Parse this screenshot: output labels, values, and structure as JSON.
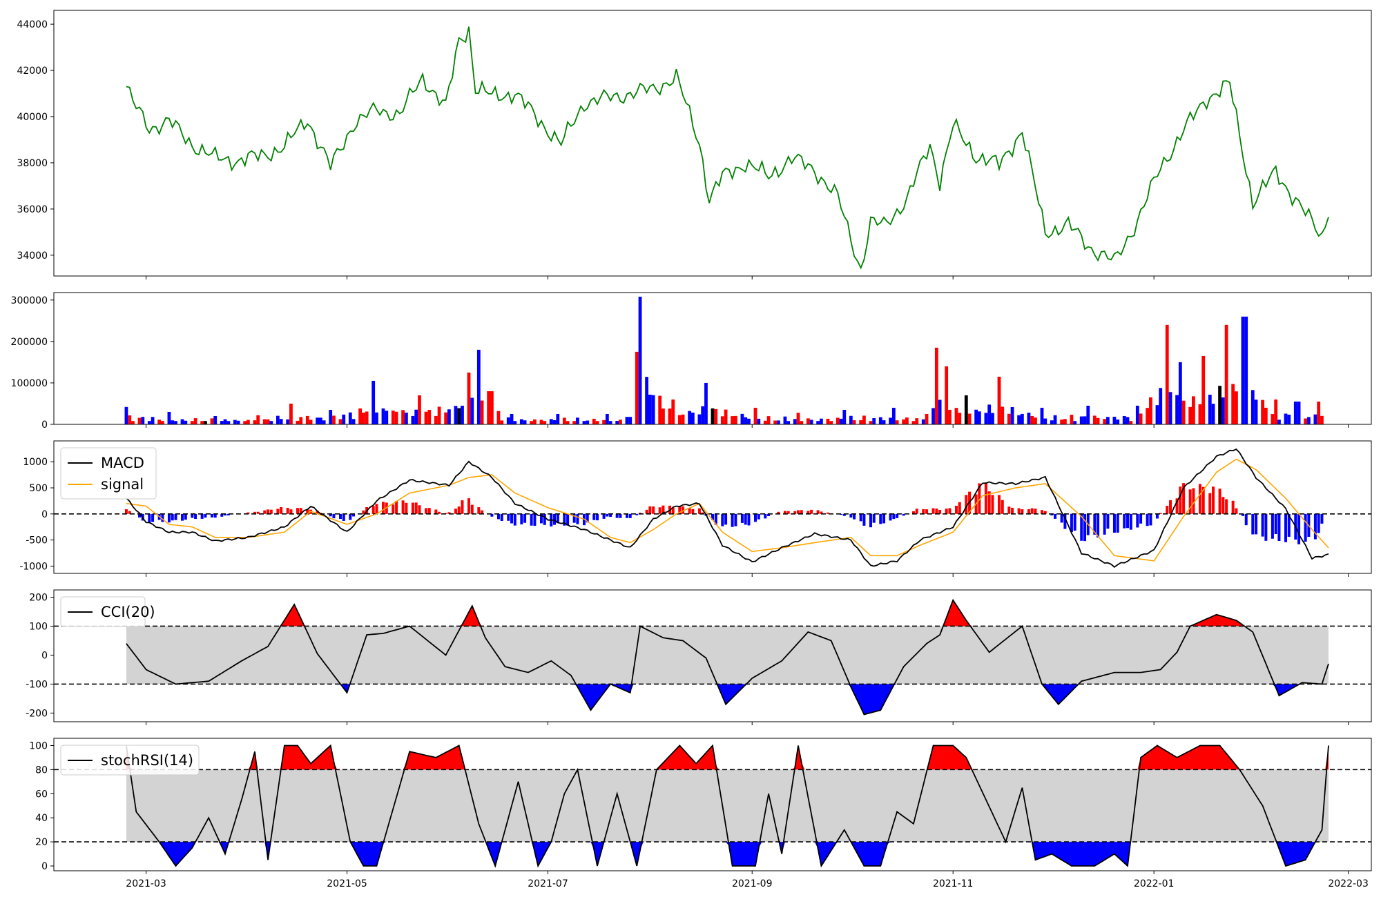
{
  "colors": {
    "price": "#008000",
    "up": "#ff0000",
    "down": "#0000ff",
    "flat": "#000000",
    "macd": "#000000",
    "signal": "#ffa500",
    "band": "#d3d3d3",
    "overbought": "#ff0000",
    "oversold": "#0000ff"
  },
  "x_axis": {
    "type": "date",
    "range": [
      "2021-02-01",
      "2022-03-08"
    ],
    "ticks": [
      "2021-03",
      "2021-05",
      "2021-07",
      "2021-09",
      "2021-11",
      "2022-01",
      "2022-03"
    ],
    "tick_dates": [
      "2021-03-01",
      "2021-05-01",
      "2021-07-01",
      "2021-09-01",
      "2021-11-01",
      "2022-01-01",
      "2022-03-01"
    ]
  },
  "chart_data": [
    {
      "type": "line",
      "ylim": [
        33100,
        44600
      ],
      "yticks": [
        34000,
        36000,
        38000,
        40000,
        42000,
        44000
      ],
      "x": [
        "2021-02-23",
        "2021-02-25",
        "2021-03-02",
        "2021-03-08",
        "2021-03-15",
        "2021-03-22",
        "2021-03-29",
        "2021-04-05",
        "2021-04-12",
        "2021-04-19",
        "2021-04-26",
        "2021-05-03",
        "2021-05-10",
        "2021-05-17",
        "2021-05-24",
        "2021-05-31",
        "2021-06-04",
        "2021-06-07",
        "2021-06-09",
        "2021-06-14",
        "2021-06-21",
        "2021-06-28",
        "2021-07-05",
        "2021-07-12",
        "2021-07-19",
        "2021-07-26",
        "2021-08-02",
        "2021-08-09",
        "2021-08-16",
        "2021-08-19",
        "2021-08-23",
        "2021-08-30",
        "2021-09-06",
        "2021-09-13",
        "2021-09-20",
        "2021-09-27",
        "2021-10-04",
        "2021-10-07",
        "2021-10-11",
        "2021-10-18",
        "2021-10-25",
        "2021-10-28",
        "2021-11-01",
        "2021-11-08",
        "2021-11-15",
        "2021-11-22",
        "2021-11-29",
        "2021-12-06",
        "2021-12-13",
        "2021-12-20",
        "2021-12-27",
        "2022-01-03",
        "2022-01-10",
        "2022-01-17",
        "2022-01-24",
        "2022-01-31",
        "2022-02-07",
        "2022-02-14",
        "2022-02-21",
        "2022-02-23"
      ],
      "values": [
        41300,
        40600,
        39500,
        39800,
        38800,
        38200,
        38100,
        38300,
        38700,
        39900,
        37800,
        39700,
        40300,
        40100,
        41700,
        40400,
        43300,
        43800,
        41200,
        40900,
        41000,
        39900,
        38800,
        40600,
        40800,
        41000,
        41200,
        41700,
        38900,
        36400,
        37400,
        38000,
        37400,
        38200,
        37700,
        36500,
        33400,
        35400,
        35300,
        36400,
        38800,
        37200,
        39600,
        38300,
        37900,
        39400,
        35000,
        35300,
        34300,
        33700,
        35500,
        37800,
        39400,
        40800,
        41400,
        36300,
        37600,
        36200,
        34800,
        36000
      ],
      "series": [
        {
          "name": "",
          "color": "#008000"
        }
      ]
    },
    {
      "type": "bar",
      "ylim": [
        0,
        318000
      ],
      "yticks": [
        0,
        100000,
        200000,
        300000
      ],
      "x": [
        "2021-02-23",
        "2021-03-08",
        "2021-03-22",
        "2021-04-05",
        "2021-04-15",
        "2021-04-26",
        "2021-05-10",
        "2021-05-24",
        "2021-06-07",
        "2021-06-10",
        "2021-06-14",
        "2021-06-21",
        "2021-07-05",
        "2021-07-19",
        "2021-07-26",
        "2021-07-28",
        "2021-07-29",
        "2021-08-09",
        "2021-08-19",
        "2021-09-02",
        "2021-09-16",
        "2021-09-30",
        "2021-10-14",
        "2021-10-25",
        "2021-10-28",
        "2021-10-30",
        "2021-11-05",
        "2021-11-15",
        "2021-11-29",
        "2021-12-13",
        "2021-12-27",
        "2022-01-05",
        "2022-01-10",
        "2022-01-17",
        "2022-01-24",
        "2022-01-29",
        "2022-02-07",
        "2022-02-14",
        "2022-02-21",
        "2022-02-23"
      ],
      "values": [
        42000,
        30000,
        20000,
        22000,
        50000,
        35000,
        105000,
        70000,
        125000,
        180000,
        80000,
        25000,
        25000,
        25000,
        18000,
        175000,
        308000,
        60000,
        100000,
        40000,
        28000,
        35000,
        40000,
        25000,
        185000,
        140000,
        70000,
        115000,
        40000,
        45000,
        45000,
        240000,
        150000,
        165000,
        240000,
        260000,
        60000,
        55000,
        55000,
        68000
      ],
      "directions": [
        "down",
        "down",
        "down",
        "up",
        "up",
        "down",
        "down",
        "up",
        "up",
        "down",
        "up",
        "down",
        "down",
        "down",
        "down",
        "up",
        "down",
        "up",
        "down",
        "up",
        "up",
        "down",
        "down",
        "up",
        "up",
        "up",
        "down",
        "up",
        "down",
        "down",
        "down",
        "up",
        "down",
        "up",
        "up",
        "down",
        "up",
        "down",
        "up",
        "up"
      ]
    },
    {
      "type": "line",
      "ylim": [
        -1140,
        1400
      ],
      "yticks": [
        -1000,
        -500,
        0,
        500,
        1000
      ],
      "legend": "upper-left",
      "zero_line": 0,
      "x": [
        "2021-02-23",
        "2021-03-01",
        "2021-03-08",
        "2021-03-15",
        "2021-03-22",
        "2021-04-01",
        "2021-04-12",
        "2021-04-20",
        "2021-05-01",
        "2021-05-10",
        "2021-05-20",
        "2021-06-01",
        "2021-06-07",
        "2021-06-14",
        "2021-06-21",
        "2021-07-01",
        "2021-07-12",
        "2021-07-20",
        "2021-07-26",
        "2021-08-02",
        "2021-08-09",
        "2021-08-16",
        "2021-08-23",
        "2021-09-01",
        "2021-09-10",
        "2021-09-20",
        "2021-10-01",
        "2021-10-07",
        "2021-10-15",
        "2021-10-22",
        "2021-11-01",
        "2021-11-10",
        "2021-11-20",
        "2021-11-29",
        "2021-12-10",
        "2021-12-20",
        "2022-01-01",
        "2022-01-10",
        "2022-01-20",
        "2022-01-26",
        "2022-02-01",
        "2022-02-10",
        "2022-02-18",
        "2022-02-23"
      ],
      "series": [
        {
          "name": "MACD",
          "color": "#000000",
          "values": [
            300,
            -150,
            -350,
            -350,
            -520,
            -450,
            -250,
            150,
            -350,
            250,
            650,
            550,
            1000,
            700,
            200,
            -100,
            -300,
            -500,
            -650,
            -100,
            150,
            200,
            -600,
            -920,
            -650,
            -380,
            -500,
            -1000,
            -900,
            -500,
            -250,
            600,
            580,
            700,
            -750,
            -1000,
            -700,
            500,
            1100,
            1250,
            700,
            100,
            -850,
            -780
          ]
        },
        {
          "name": "signal",
          "color": "#ffa500",
          "values": [
            200,
            150,
            -200,
            -250,
            -450,
            -450,
            -350,
            50,
            -200,
            0,
            400,
            550,
            700,
            750,
            400,
            120,
            -100,
            -450,
            -550,
            -300,
            0,
            200,
            -350,
            -720,
            -650,
            -550,
            -450,
            -800,
            -800,
            -600,
            -350,
            350,
            500,
            580,
            -50,
            -800,
            -900,
            -50,
            800,
            1050,
            850,
            300,
            -300,
            -650
          ]
        },
        {
          "name": "histogram",
          "type": "bar",
          "values": [
            120,
            -150,
            -150,
            -100,
            -70,
            20,
            120,
            100,
            -150,
            200,
            250,
            0,
            300,
            -50,
            -200,
            -220,
            -200,
            -50,
            -100,
            150,
            150,
            100,
            -250,
            -200,
            50,
            80,
            -50,
            -250,
            -100,
            100,
            100,
            600,
            100,
            100,
            -500,
            -350,
            -200,
            550,
            500,
            200,
            -450,
            -500,
            -550,
            -130
          ]
        }
      ]
    },
    {
      "type": "line",
      "ylim": [
        -230,
        225
      ],
      "yticks": [
        -200,
        -100,
        0,
        100,
        200
      ],
      "legend": "upper-left",
      "reference_lines": [
        100,
        -100
      ],
      "band": [
        -100,
        100
      ],
      "x": [
        "2021-02-23",
        "2021-03-01",
        "2021-03-10",
        "2021-03-20",
        "2021-03-30",
        "2021-04-07",
        "2021-04-15",
        "2021-04-22",
        "2021-05-01",
        "2021-05-07",
        "2021-05-12",
        "2021-05-20",
        "2021-05-31",
        "2021-06-08",
        "2021-06-12",
        "2021-06-18",
        "2021-06-25",
        "2021-07-02",
        "2021-07-08",
        "2021-07-14",
        "2021-07-20",
        "2021-07-26",
        "2021-07-29",
        "2021-08-05",
        "2021-08-11",
        "2021-08-18",
        "2021-08-24",
        "2021-09-01",
        "2021-09-10",
        "2021-09-18",
        "2021-09-25",
        "2021-10-01",
        "2021-10-05",
        "2021-10-10",
        "2021-10-17",
        "2021-10-24",
        "2021-10-28",
        "2021-11-01",
        "2021-11-05",
        "2021-11-12",
        "2021-11-22",
        "2021-11-28",
        "2021-12-03",
        "2021-12-10",
        "2021-12-20",
        "2021-12-28",
        "2022-01-03",
        "2022-01-08",
        "2022-01-12",
        "2022-01-20",
        "2022-01-26",
        "2022-01-31",
        "2022-02-08",
        "2022-02-15",
        "2022-02-21",
        "2022-02-23"
      ],
      "series": [
        {
          "name": "CCI(20)",
          "color": "#000000",
          "values": [
            40,
            -50,
            -100,
            -90,
            -20,
            30,
            175,
            5,
            -130,
            70,
            75,
            100,
            0,
            170,
            60,
            -40,
            -60,
            -20,
            -70,
            -190,
            -100,
            -130,
            100,
            60,
            50,
            -10,
            -170,
            -80,
            -20,
            80,
            50,
            -110,
            -205,
            -190,
            -40,
            40,
            70,
            190,
            120,
            10,
            100,
            -100,
            -170,
            -90,
            -60,
            -60,
            -50,
            10,
            100,
            140,
            120,
            80,
            -140,
            -95,
            -100,
            -30
          ]
        }
      ]
    },
    {
      "type": "line",
      "ylim": [
        -4,
        106
      ],
      "yticks": [
        0,
        20,
        40,
        60,
        80,
        100
      ],
      "legend": "upper-left",
      "reference_lines": [
        80,
        20
      ],
      "band": [
        20,
        80
      ],
      "x": [
        "2021-02-23",
        "2021-02-26",
        "2021-03-05",
        "2021-03-10",
        "2021-03-15",
        "2021-03-20",
        "2021-03-25",
        "2021-03-30",
        "2021-04-03",
        "2021-04-07",
        "2021-04-12",
        "2021-04-16",
        "2021-04-20",
        "2021-04-26",
        "2021-05-02",
        "2021-05-06",
        "2021-05-10",
        "2021-05-20",
        "2021-05-28",
        "2021-06-04",
        "2021-06-10",
        "2021-06-15",
        "2021-06-22",
        "2021-06-28",
        "2021-07-02",
        "2021-07-06",
        "2021-07-10",
        "2021-07-16",
        "2021-07-22",
        "2021-07-28",
        "2021-08-03",
        "2021-08-10",
        "2021-08-15",
        "2021-08-20",
        "2021-08-26",
        "2021-09-02",
        "2021-09-06",
        "2021-09-10",
        "2021-09-15",
        "2021-09-22",
        "2021-09-29",
        "2021-10-05",
        "2021-10-10",
        "2021-10-15",
        "2021-10-20",
        "2021-10-26",
        "2021-11-01",
        "2021-11-05",
        "2021-11-11",
        "2021-11-17",
        "2021-11-22",
        "2021-11-26",
        "2021-12-01",
        "2021-12-07",
        "2021-12-14",
        "2021-12-20",
        "2021-12-24",
        "2021-12-28",
        "2022-01-02",
        "2022-01-08",
        "2022-01-15",
        "2022-01-21",
        "2022-01-27",
        "2022-02-03",
        "2022-02-10",
        "2022-02-16",
        "2022-02-21",
        "2022-02-23"
      ],
      "series": [
        {
          "name": "stochRSI(14)",
          "color": "#000000",
          "values": [
            100,
            45,
            20,
            0,
            15,
            40,
            10,
            55,
            95,
            5,
            100,
            100,
            85,
            100,
            20,
            0,
            0,
            95,
            90,
            100,
            35,
            0,
            70,
            0,
            20,
            60,
            80,
            0,
            60,
            0,
            80,
            100,
            85,
            100,
            0,
            0,
            60,
            10,
            100,
            0,
            30,
            0,
            0,
            45,
            35,
            100,
            100,
            90,
            55,
            20,
            65,
            5,
            10,
            0,
            0,
            10,
            0,
            90,
            100,
            90,
            100,
            100,
            80,
            50,
            0,
            5,
            30,
            100
          ]
        }
      ]
    }
  ]
}
